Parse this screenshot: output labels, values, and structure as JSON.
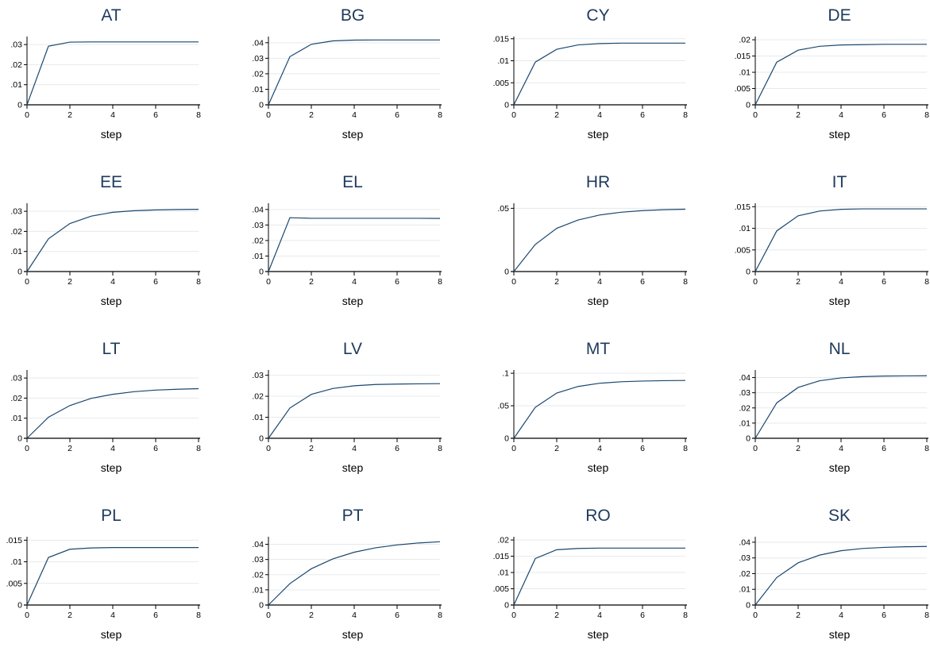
{
  "chart_data": [
    {
      "type": "line",
      "title": "AT",
      "xlabel": "step",
      "x": [
        0,
        1,
        2,
        3,
        4,
        5,
        6,
        7,
        8
      ],
      "values": [
        0,
        0.0292,
        0.0312,
        0.0313,
        0.0313,
        0.0313,
        0.0313,
        0.0313,
        0.0313
      ],
      "yticks": [
        0,
        0.01,
        0.02,
        0.03
      ],
      "ytick_labels": [
        "0",
        ".01",
        ".02",
        ".03"
      ],
      "xticks": [
        0,
        2,
        4,
        6,
        8
      ],
      "ylim": [
        0,
        0.034
      ],
      "xlim": [
        0,
        8
      ],
      "grid": true
    },
    {
      "type": "line",
      "title": "BG",
      "xlabel": "step",
      "x": [
        0,
        1,
        2,
        3,
        4,
        5,
        6,
        7,
        8
      ],
      "values": [
        0,
        0.031,
        0.039,
        0.0412,
        0.0417,
        0.0418,
        0.0418,
        0.0418,
        0.0418
      ],
      "yticks": [
        0,
        0.01,
        0.02,
        0.03,
        0.04
      ],
      "ytick_labels": [
        "0",
        ".01",
        ".02",
        ".03",
        ".04"
      ],
      "xticks": [
        0,
        2,
        4,
        6,
        8
      ],
      "ylim": [
        0,
        0.044
      ],
      "xlim": [
        0,
        8
      ],
      "grid": true
    },
    {
      "type": "line",
      "title": "CY",
      "xlabel": "step",
      "x": [
        0,
        1,
        2,
        3,
        4,
        5,
        6,
        7,
        8
      ],
      "values": [
        0,
        0.0097,
        0.0126,
        0.0136,
        0.0139,
        0.014,
        0.014,
        0.014,
        0.014
      ],
      "yticks": [
        0,
        0.005,
        0.01,
        0.015
      ],
      "ytick_labels": [
        "0",
        ".005",
        ".01",
        ".015"
      ],
      "xticks": [
        0,
        2,
        4,
        6,
        8
      ],
      "ylim": [
        0,
        0.0155
      ],
      "xlim": [
        0,
        8
      ],
      "grid": true
    },
    {
      "type": "line",
      "title": "DE",
      "xlabel": "step",
      "x": [
        0,
        1,
        2,
        3,
        4,
        5,
        6,
        7,
        8
      ],
      "values": [
        0,
        0.0131,
        0.0168,
        0.018,
        0.0184,
        0.0185,
        0.0186,
        0.0186,
        0.0186
      ],
      "yticks": [
        0,
        0.005,
        0.01,
        0.015,
        0.02
      ],
      "ytick_labels": [
        "0",
        ".005",
        ".01",
        ".015",
        ".02"
      ],
      "xticks": [
        0,
        2,
        4,
        6,
        8
      ],
      "ylim": [
        0,
        0.021
      ],
      "xlim": [
        0,
        8
      ],
      "grid": true
    },
    {
      "type": "line",
      "title": "EE",
      "xlabel": "step",
      "x": [
        0,
        1,
        2,
        3,
        4,
        5,
        6,
        7,
        8
      ],
      "values": [
        0,
        0.0163,
        0.0239,
        0.0276,
        0.0295,
        0.0303,
        0.0307,
        0.0309,
        0.031
      ],
      "yticks": [
        0,
        0.01,
        0.02,
        0.03
      ],
      "ytick_labels": [
        "0",
        ".01",
        ".02",
        ".03"
      ],
      "xticks": [
        0,
        2,
        4,
        6,
        8
      ],
      "ylim": [
        0,
        0.034
      ],
      "xlim": [
        0,
        8
      ],
      "grid": true
    },
    {
      "type": "line",
      "title": "EL",
      "xlabel": "step",
      "x": [
        0,
        1,
        2,
        3,
        4,
        5,
        6,
        7,
        8
      ],
      "values": [
        0,
        0.0347,
        0.0343,
        0.0343,
        0.0343,
        0.0343,
        0.0343,
        0.0343,
        0.0342
      ],
      "yticks": [
        0,
        0.01,
        0.02,
        0.03,
        0.04
      ],
      "ytick_labels": [
        "0",
        ".01",
        ".02",
        ".03",
        ".04"
      ],
      "xticks": [
        0,
        2,
        4,
        6,
        8
      ],
      "ylim": [
        0,
        0.044
      ],
      "xlim": [
        0,
        8
      ],
      "grid": true
    },
    {
      "type": "line",
      "title": "HR",
      "xlabel": "step",
      "x": [
        0,
        1,
        2,
        3,
        4,
        5,
        6,
        7,
        8
      ],
      "values": [
        0,
        0.0214,
        0.0342,
        0.0408,
        0.0447,
        0.0469,
        0.0482,
        0.0489,
        0.0493
      ],
      "yticks": [
        0,
        0.05
      ],
      "ytick_labels": [
        "0",
        ".05"
      ],
      "xticks": [
        0,
        2,
        4,
        6,
        8
      ],
      "ylim": [
        0,
        0.054
      ],
      "xlim": [
        0,
        8
      ],
      "grid": true
    },
    {
      "type": "line",
      "title": "IT",
      "xlabel": "step",
      "x": [
        0,
        1,
        2,
        3,
        4,
        5,
        6,
        7,
        8
      ],
      "values": [
        0,
        0.0094,
        0.0129,
        0.014,
        0.0144,
        0.0145,
        0.0145,
        0.0145,
        0.0145
      ],
      "yticks": [
        0,
        0.005,
        0.01,
        0.015
      ],
      "ytick_labels": [
        "0",
        ".005",
        ".01",
        ".015"
      ],
      "xticks": [
        0,
        2,
        4,
        6,
        8
      ],
      "ylim": [
        0,
        0.0158
      ],
      "xlim": [
        0,
        8
      ],
      "grid": true
    },
    {
      "type": "line",
      "title": "LT",
      "xlabel": "step",
      "x": [
        0,
        1,
        2,
        3,
        4,
        5,
        6,
        7,
        8
      ],
      "values": [
        0,
        0.0105,
        0.0163,
        0.0199,
        0.0219,
        0.0232,
        0.024,
        0.0244,
        0.0247
      ],
      "yticks": [
        0,
        0.01,
        0.02,
        0.03
      ],
      "ytick_labels": [
        "0",
        ".01",
        ".02",
        ".03"
      ],
      "xticks": [
        0,
        2,
        4,
        6,
        8
      ],
      "ylim": [
        0,
        0.034
      ],
      "xlim": [
        0,
        8
      ],
      "grid": true
    },
    {
      "type": "line",
      "title": "LV",
      "xlabel": "step",
      "x": [
        0,
        1,
        2,
        3,
        4,
        5,
        6,
        7,
        8
      ],
      "values": [
        0,
        0.0144,
        0.0209,
        0.0237,
        0.025,
        0.0256,
        0.0258,
        0.0259,
        0.026
      ],
      "yticks": [
        0,
        0.01,
        0.02,
        0.03
      ],
      "ytick_labels": [
        "0",
        ".01",
        ".02",
        ".03"
      ],
      "xticks": [
        0,
        2,
        4,
        6,
        8
      ],
      "ylim": [
        0,
        0.0325
      ],
      "xlim": [
        0,
        8
      ],
      "grid": true
    },
    {
      "type": "line",
      "title": "MT",
      "xlabel": "step",
      "x": [
        0,
        1,
        2,
        3,
        4,
        5,
        6,
        7,
        8
      ],
      "values": [
        0,
        0.0476,
        0.0696,
        0.0797,
        0.0846,
        0.0869,
        0.088,
        0.0886,
        0.0889
      ],
      "yticks": [
        0,
        0.05,
        0.1
      ],
      "ytick_labels": [
        "0",
        ".05",
        ".1"
      ],
      "xticks": [
        0,
        2,
        4,
        6,
        8
      ],
      "ylim": [
        0,
        0.105
      ],
      "xlim": [
        0,
        8
      ],
      "grid": true
    },
    {
      "type": "line",
      "title": "NL",
      "xlabel": "step",
      "x": [
        0,
        1,
        2,
        3,
        4,
        5,
        6,
        7,
        8
      ],
      "values": [
        0,
        0.0233,
        0.0335,
        0.0379,
        0.0398,
        0.0406,
        0.041,
        0.0411,
        0.0412
      ],
      "yticks": [
        0,
        0.01,
        0.02,
        0.03,
        0.04
      ],
      "ytick_labels": [
        "0",
        ".01",
        ".02",
        ".03",
        ".04"
      ],
      "xticks": [
        0,
        2,
        4,
        6,
        8
      ],
      "ylim": [
        0,
        0.045
      ],
      "xlim": [
        0,
        8
      ],
      "grid": true
    },
    {
      "type": "line",
      "title": "PL",
      "xlabel": "step",
      "x": [
        0,
        1,
        2,
        3,
        4,
        5,
        6,
        7,
        8
      ],
      "values": [
        0,
        0.011,
        0.0129,
        0.0132,
        0.0133,
        0.0133,
        0.0133,
        0.0133,
        0.0133
      ],
      "yticks": [
        0,
        0.005,
        0.01,
        0.015
      ],
      "ytick_labels": [
        "0",
        ".005",
        ".01",
        ".015"
      ],
      "xticks": [
        0,
        2,
        4,
        6,
        8
      ],
      "ylim": [
        0,
        0.0158
      ],
      "xlim": [
        0,
        8
      ],
      "grid": true
    },
    {
      "type": "line",
      "title": "PT",
      "xlabel": "step",
      "x": [
        0,
        1,
        2,
        3,
        4,
        5,
        6,
        7,
        8
      ],
      "values": [
        0,
        0.0141,
        0.0239,
        0.0304,
        0.0348,
        0.0377,
        0.0396,
        0.0409,
        0.0417
      ],
      "yticks": [
        0,
        0.01,
        0.02,
        0.03,
        0.04
      ],
      "ytick_labels": [
        "0",
        ".01",
        ".02",
        ".03",
        ".04"
      ],
      "xticks": [
        0,
        2,
        4,
        6,
        8
      ],
      "ylim": [
        0,
        0.045
      ],
      "xlim": [
        0,
        8
      ],
      "grid": true
    },
    {
      "type": "line",
      "title": "RO",
      "xlabel": "step",
      "x": [
        0,
        1,
        2,
        3,
        4,
        5,
        6,
        7,
        8
      ],
      "values": [
        0,
        0.0143,
        0.017,
        0.0174,
        0.0175,
        0.0175,
        0.0175,
        0.0175,
        0.0175
      ],
      "yticks": [
        0,
        0.005,
        0.01,
        0.015,
        0.02
      ],
      "ytick_labels": [
        "0",
        ".005",
        ".01",
        ".015",
        ".02"
      ],
      "xticks": [
        0,
        2,
        4,
        6,
        8
      ],
      "ylim": [
        0,
        0.021
      ],
      "xlim": [
        0,
        8
      ],
      "grid": true
    },
    {
      "type": "line",
      "title": "SK",
      "xlabel": "step",
      "x": [
        0,
        1,
        2,
        3,
        4,
        5,
        6,
        7,
        8
      ],
      "values": [
        0,
        0.0175,
        0.0269,
        0.0318,
        0.0346,
        0.036,
        0.0367,
        0.0371,
        0.0373
      ],
      "yticks": [
        0,
        0.01,
        0.02,
        0.03,
        0.04
      ],
      "ytick_labels": [
        "0",
        ".01",
        ".02",
        ".03",
        ".04"
      ],
      "xticks": [
        0,
        2,
        4,
        6,
        8
      ],
      "ylim": [
        0,
        0.0435
      ],
      "xlim": [
        0,
        8
      ],
      "grid": true
    }
  ],
  "colors": {
    "line": "#1a476f",
    "title": "#1e3a5c",
    "grid": "#e6e9ec"
  }
}
